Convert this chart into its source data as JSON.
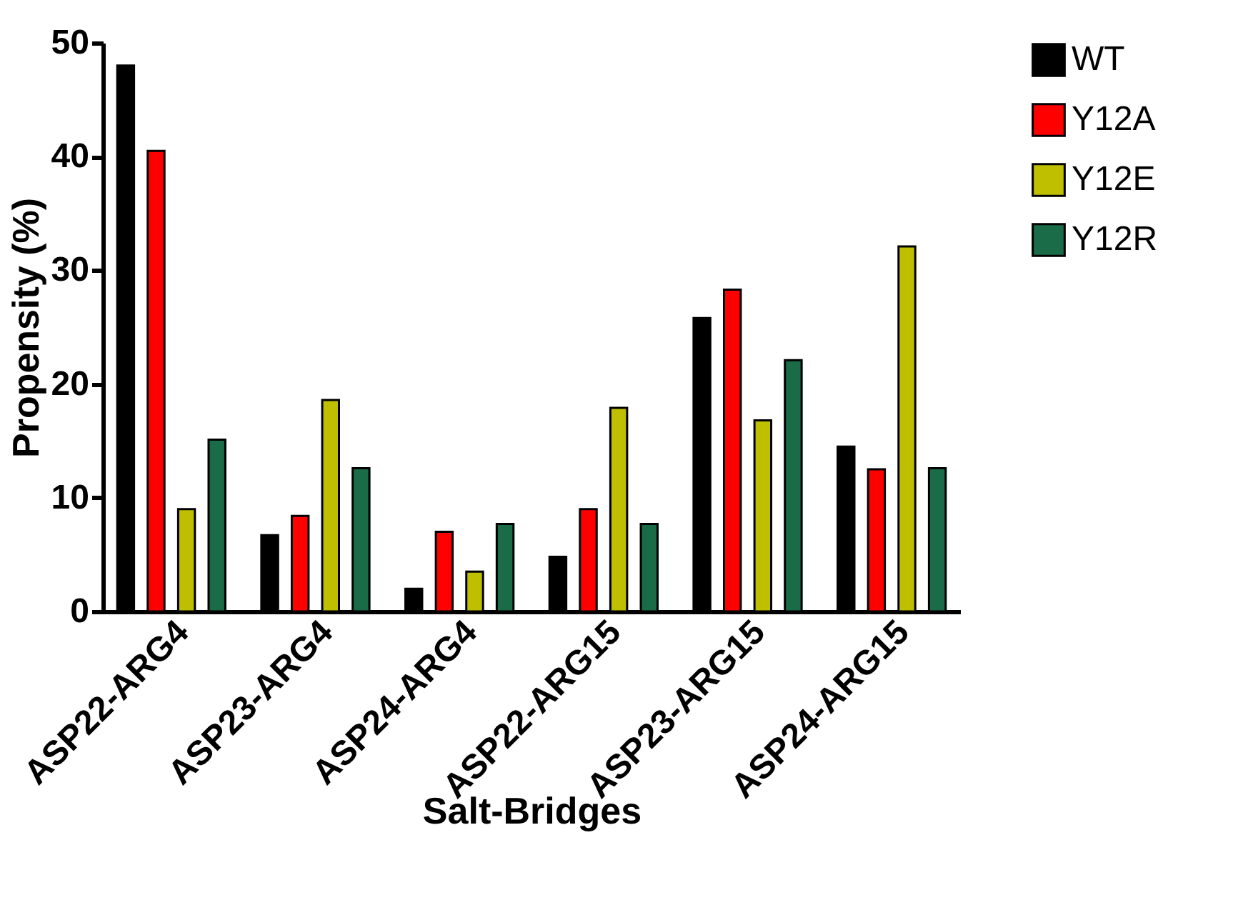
{
  "chart_data": {
    "type": "bar",
    "xlabel": "Salt-Bridges",
    "ylabel": "Propensity (%)",
    "categories": [
      "ASP22-ARG4",
      "ASP23-ARG4",
      "ASP24-ARG4",
      "ASP22-ARG15",
      "ASP23-ARG15",
      "ASP24-ARG15"
    ],
    "series": [
      {
        "name": "WT",
        "color": "#000000",
        "values": [
          48.0,
          6.7,
          2.0,
          4.8,
          25.8,
          14.5
        ]
      },
      {
        "name": "Y12A",
        "color": "#ff0000",
        "values": [
          40.5,
          8.4,
          7.0,
          9.0,
          28.3,
          12.5
        ]
      },
      {
        "name": "Y12E",
        "color": "#bfbf00",
        "values": [
          9.0,
          18.6,
          3.5,
          17.9,
          16.8,
          32.1
        ]
      },
      {
        "name": "Y12R",
        "color": "#1a6b47",
        "values": [
          15.1,
          12.6,
          7.7,
          7.7,
          22.1,
          12.6
        ]
      }
    ],
    "ylim": [
      0,
      50
    ],
    "yticks": [
      0,
      10,
      20,
      30,
      40,
      50
    ],
    "grid": false,
    "legend": "top right"
  }
}
